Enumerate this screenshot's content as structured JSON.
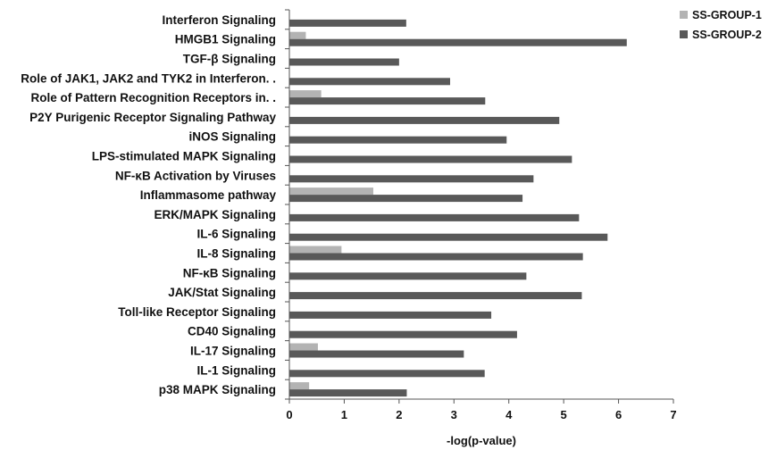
{
  "chart_data": {
    "type": "bar",
    "orientation": "horizontal",
    "categories": [
      "Interferon Signaling",
      "HMGB1 Signaling",
      "TGF-β Signaling",
      "Role of JAK1, JAK2 and TYK2 in Interferon. .",
      "Role of Pattern Recognition Receptors in. .",
      "P2Y Purigenic Receptor Signaling Pathway",
      "iNOS Signaling",
      "LPS-stimulated MAPK Signaling",
      "NF-κB Activation by Viruses",
      "Inflammasome pathway",
      "ERK/MAPK Signaling",
      "IL-6 Signaling",
      "IL-8 Signaling",
      "NF-κB Signaling",
      "JAK/Stat Signaling",
      "Toll-like Receptor Signaling",
      "CD40 Signaling",
      "IL-17 Signaling",
      "IL-1 Signaling",
      "p38 MAPK Signaling"
    ],
    "series": [
      {
        "name": "SS-GROUP-1",
        "color": "#b3b3b3",
        "values": [
          0,
          0.3,
          0,
          0,
          0.58,
          0,
          0,
          0,
          0,
          1.53,
          0,
          0,
          0.95,
          0,
          0,
          0,
          0,
          0.52,
          0,
          0.36
        ]
      },
      {
        "name": "SS-GROUP-2",
        "color": "#595959",
        "values": [
          2.13,
          6.15,
          2.0,
          2.93,
          3.57,
          4.92,
          3.96,
          5.15,
          4.45,
          4.25,
          5.28,
          5.8,
          5.35,
          4.32,
          5.33,
          3.68,
          4.15,
          3.18,
          3.56,
          2.14
        ]
      }
    ],
    "xlabel": "-log(p-value)",
    "ylabel": "",
    "xlim": [
      0,
      7
    ],
    "xticks": [
      "0",
      "1",
      "2",
      "3",
      "4",
      "5",
      "6",
      "7"
    ],
    "grid": false,
    "legend_position": "top-right"
  }
}
